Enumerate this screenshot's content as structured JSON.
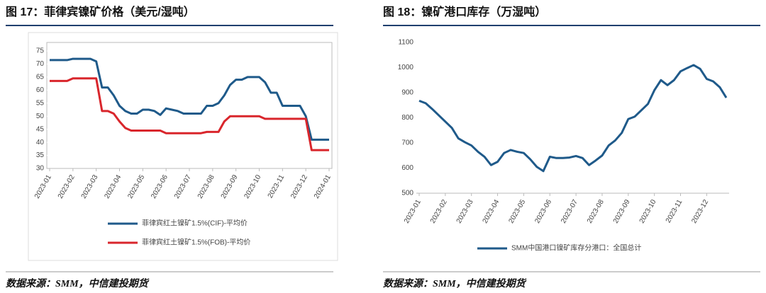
{
  "chart_data": [
    {
      "type": "line",
      "title": "图 17：菲律宾镍矿价格（美元/湿吨）",
      "source": "数据来源：SMM，中信建投期货",
      "legend": "bottom",
      "categories": [
        "2023-01",
        null,
        null,
        null,
        "2023-02",
        null,
        null,
        null,
        "2023-03",
        null,
        null,
        null,
        "2023-04",
        null,
        null,
        null,
        "2023-05",
        null,
        null,
        null,
        "2023-06",
        null,
        null,
        null,
        "2023-07",
        null,
        null,
        null,
        "2023-08",
        null,
        null,
        null,
        "2023-09",
        null,
        null,
        null,
        "2023-10",
        null,
        null,
        null,
        "2023-11",
        null,
        null,
        null,
        "2023-12",
        null,
        null,
        null,
        "2024-01"
      ],
      "ylim": [
        30,
        75
      ],
      "yticks": [
        30,
        35,
        40,
        45,
        50,
        55,
        60,
        65,
        70,
        75
      ],
      "series": [
        {
          "name": "菲律宾红土镍矿1.5%(CIF)-平均价",
          "color": "#1f5a8a",
          "values": [
            71.5,
            71.5,
            71.5,
            71.5,
            72,
            72,
            72,
            72,
            71,
            61,
            61,
            58,
            54,
            52,
            51,
            51,
            52.5,
            52.5,
            52,
            50.5,
            53,
            52.5,
            52,
            51,
            51,
            51,
            51,
            54,
            54,
            55,
            58,
            62,
            64,
            64,
            65,
            65,
            65,
            63,
            59,
            59,
            54,
            54,
            54,
            54,
            50,
            41,
            41,
            41,
            41
          ]
        },
        {
          "name": "菲律宾红土镍矿1.5%(FOB)-平均价",
          "color": "#d9262c",
          "values": [
            63.5,
            63.5,
            63.5,
            63.5,
            64.5,
            64.5,
            64.5,
            64.5,
            64.5,
            52,
            52,
            51,
            48,
            45.5,
            44.5,
            44.5,
            44.5,
            44.5,
            44.5,
            44.5,
            43.5,
            43.5,
            43.5,
            43.5,
            43.5,
            43.5,
            43.5,
            44,
            44,
            44,
            48,
            50,
            50,
            50,
            50,
            50,
            50,
            49,
            49,
            49,
            49,
            49,
            49,
            49,
            49,
            37,
            37,
            37,
            37
          ]
        }
      ]
    },
    {
      "type": "line",
      "title": "图 18：镍矿港口库存（万湿吨）",
      "source": "数据来源：SMM，中信建投期货",
      "legend": "bottom",
      "categories": [
        "2023-01",
        null,
        null,
        null,
        "2023-02",
        null,
        null,
        null,
        "2023-03",
        null,
        null,
        null,
        "2023-04",
        null,
        null,
        null,
        "2023-05",
        null,
        null,
        null,
        "2023-06",
        null,
        null,
        null,
        "2023-07",
        null,
        null,
        null,
        "2023-08",
        null,
        null,
        null,
        "2023-09",
        null,
        null,
        null,
        "2023-10",
        null,
        null,
        null,
        "2023-11",
        null,
        null,
        null,
        "2023-12",
        null,
        null,
        null
      ],
      "ylim": [
        500,
        1100
      ],
      "yticks": [
        500,
        600,
        700,
        800,
        900,
        1000,
        1100
      ],
      "series": [
        {
          "name": "SMM中国港口镍矿库存分港口：全国总计",
          "color": "#1f5a8a",
          "values": [
            868,
            858,
            835,
            810,
            785,
            760,
            718,
            703,
            690,
            665,
            645,
            612,
            625,
            660,
            672,
            665,
            660,
            635,
            605,
            588,
            645,
            640,
            640,
            642,
            648,
            640,
            612,
            630,
            650,
            690,
            710,
            740,
            795,
            805,
            830,
            855,
            910,
            950,
            930,
            950,
            985,
            998,
            1010,
            995,
            955,
            945,
            922,
            880
          ]
        }
      ]
    }
  ]
}
